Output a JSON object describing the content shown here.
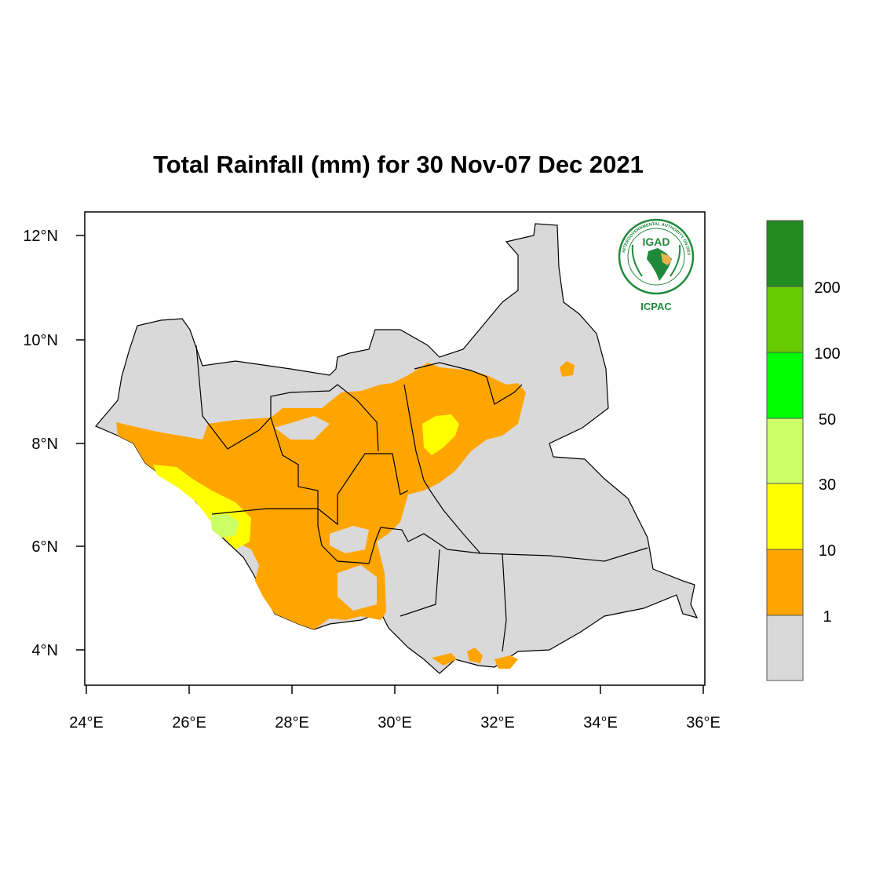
{
  "title": "Total Rainfall (mm) for 30 Nov-07 Dec 2021",
  "map": {
    "region": "South Sudan",
    "lon_range": [
      24,
      36
    ],
    "lat_range": [
      3.4,
      12.5
    ],
    "x_ticks": [
      "24°E",
      "26°E",
      "28°E",
      "30°E",
      "32°E",
      "34°E",
      "36°E"
    ],
    "y_ticks": [
      "4°N",
      "6°N",
      "8°N",
      "10°N",
      "12°N"
    ]
  },
  "legend": {
    "labels": [
      "1",
      "10",
      "30",
      "50",
      "100",
      "200"
    ],
    "colors": [
      "#d9d9d9",
      "#ffa500",
      "#ffff00",
      "#ccff66",
      "#00ff00",
      "#66cc00",
      "#228b22"
    ]
  },
  "logo": {
    "top_text": "IGAD",
    "bottom_text": "ICPAC",
    "ring_text": "INTERGOVERNMENTAL AUTHORITY ON DEVELOPMENT"
  },
  "colors": {
    "no_rain": "#d9d9d9",
    "orange": "#ffa500",
    "yellow": "#ffff00",
    "light_green": "#ccff66",
    "logo_green": "#1f8a3c"
  }
}
